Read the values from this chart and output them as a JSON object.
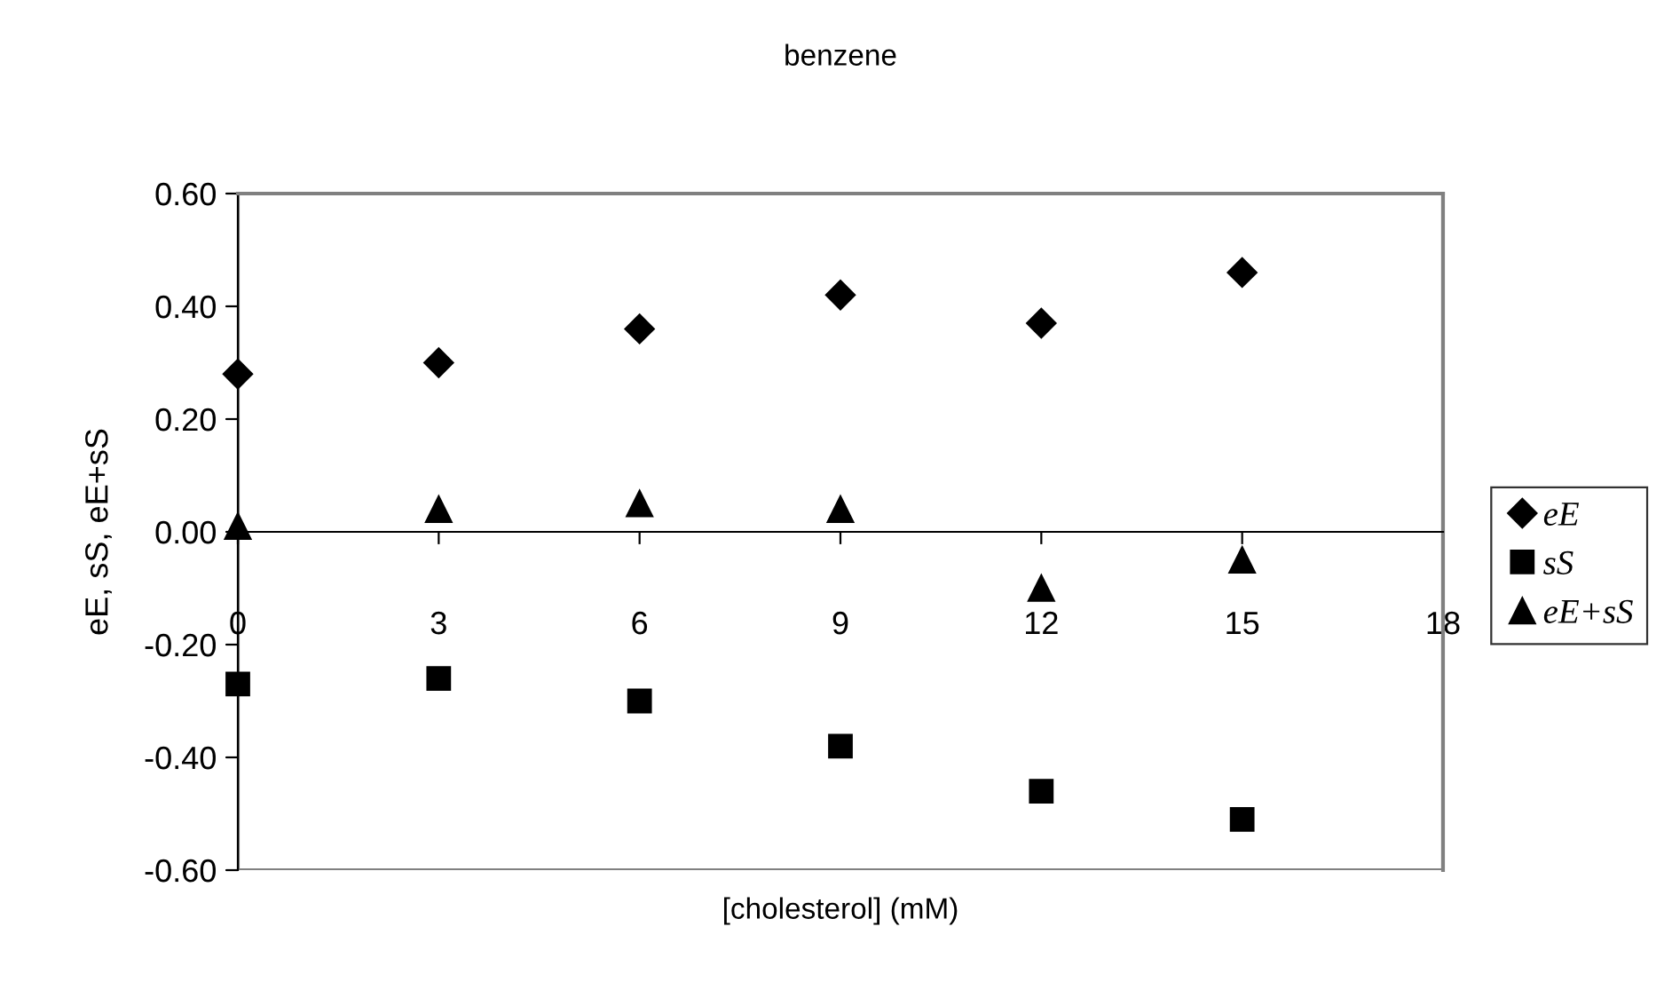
{
  "chart_data": {
    "type": "scatter",
    "title": "benzene",
    "xlabel": "[cholesterol] (mM)",
    "ylabel": "eE, sS, eE+sS",
    "x": [
      0,
      3,
      6,
      9,
      12,
      15
    ],
    "series": [
      {
        "name": "eE",
        "color": "#000000",
        "marker": "diamond",
        "values": [
          0.28,
          0.3,
          0.36,
          0.42,
          0.37,
          0.46
        ]
      },
      {
        "name": "sS",
        "color": "#000000",
        "marker": "square",
        "values": [
          -0.27,
          -0.26,
          -0.3,
          -0.38,
          -0.46,
          -0.51
        ]
      },
      {
        "name": "eE+sS",
        "color": "#000000",
        "marker": "triangle",
        "values": [
          0.01,
          0.04,
          0.05,
          0.04,
          -0.1,
          -0.05
        ]
      }
    ],
    "xlim": [
      0,
      18
    ],
    "xticks": [
      0,
      3,
      6,
      9,
      12,
      15,
      18
    ],
    "ylim": [
      -0.6,
      0.6
    ],
    "yticks": [
      {
        "value": -0.6,
        "label": "-0.60"
      },
      {
        "value": -0.4,
        "label": "-0.40"
      },
      {
        "value": -0.2,
        "label": "-0.20"
      },
      {
        "value": 0,
        "label": "0.00"
      },
      {
        "value": 0.2,
        "label": "0.20"
      },
      {
        "value": 0.4,
        "label": "0.40"
      },
      {
        "value": 0.6,
        "label": "0.60"
      }
    ],
    "grid": false,
    "legend": "right"
  }
}
